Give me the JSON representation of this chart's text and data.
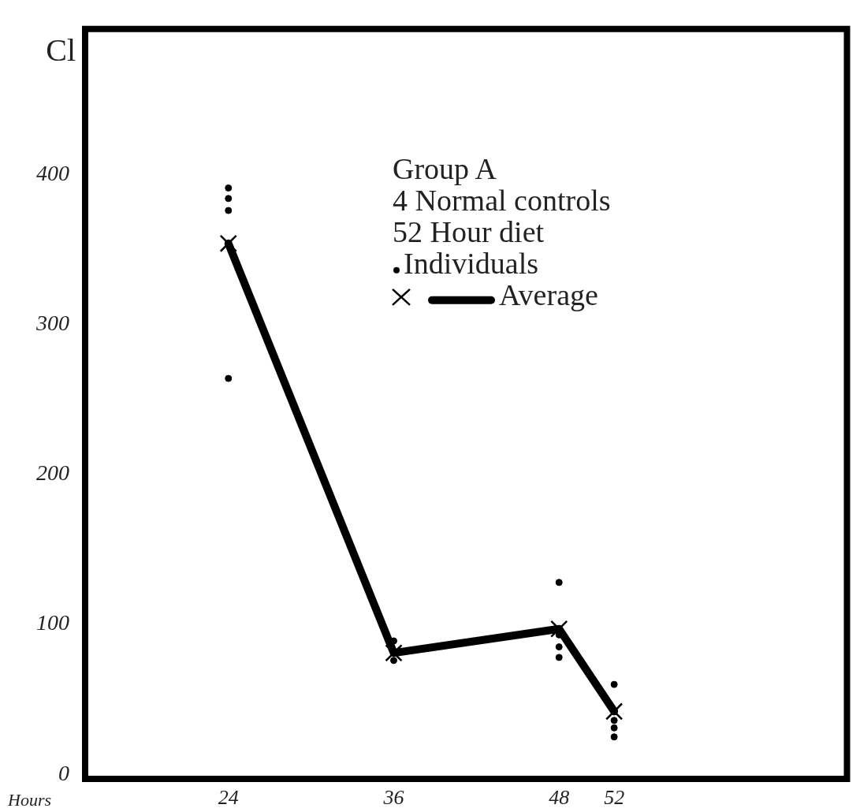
{
  "chart_data": {
    "type": "line",
    "title": "Group A",
    "annotations": [
      "4 Normal controls",
      "52 Hour diet"
    ],
    "xlabel": "Hours",
    "ylabel": "Cl",
    "xlim": [
      13.6,
      68.9
    ],
    "xticks": [
      24,
      36,
      48,
      52
    ],
    "ylim": [
      -3,
      497
    ],
    "yticks": [
      0,
      100,
      200,
      300,
      400
    ],
    "grid": false,
    "legend": "top right",
    "series": [
      {
        "name": "Individuals",
        "type": "scatter",
        "marker": "circle",
        "color": "#000000",
        "x": [
          24,
          24,
          24,
          24,
          36,
          36,
          48,
          48,
          48,
          48,
          52,
          52,
          52,
          52
        ],
        "values": [
          391,
          384,
          376,
          264,
          89,
          76,
          128,
          93,
          85,
          78,
          60,
          36,
          31,
          25
        ]
      },
      {
        "name": "Average",
        "marker": "cross",
        "color": "#000000",
        "x": [
          24,
          36,
          48,
          52
        ],
        "values": [
          354,
          81,
          97,
          42
        ]
      }
    ]
  }
}
